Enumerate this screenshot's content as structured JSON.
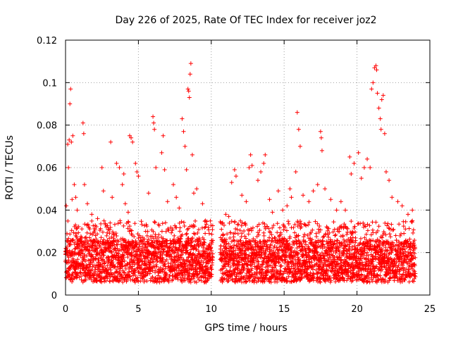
{
  "chart_data": {
    "type": "scatter",
    "title": "Day 226 of 2025, Rate Of TEC Index for receiver joz2",
    "xlabel": "GPS time / hours",
    "ylabel": "ROTI / TECUs",
    "xlim": [
      0,
      25
    ],
    "ylim": [
      0,
      0.12
    ],
    "xticks": [
      0,
      5,
      10,
      15,
      20,
      25
    ],
    "xtick_labels": [
      "0",
      "5",
      "10",
      "15",
      "20",
      "25"
    ],
    "yticks": [
      0,
      0.02,
      0.04,
      0.06,
      0.08,
      0.1,
      0.12
    ],
    "ytick_labels": [
      "0",
      "0.02",
      "0.04",
      "0.06",
      "0.08",
      "0.1",
      "0.12"
    ],
    "grid": true,
    "marker": "+",
    "color": "#ff0000",
    "data_gap_hours": [
      10.1,
      10.6
    ],
    "series": [
      {
        "name": "ROTI",
        "points": [
          [
            0.05,
            0.042
          ],
          [
            0.15,
            0.071
          ],
          [
            0.2,
            0.06
          ],
          [
            0.25,
            0.073
          ],
          [
            0.3,
            0.09
          ],
          [
            0.35,
            0.097
          ],
          [
            0.4,
            0.072
          ],
          [
            0.45,
            0.045
          ],
          [
            0.5,
            0.075
          ],
          [
            0.6,
            0.052
          ],
          [
            0.7,
            0.046
          ],
          [
            0.8,
            0.04
          ],
          [
            1.2,
            0.081
          ],
          [
            1.25,
            0.076
          ],
          [
            1.3,
            0.052
          ],
          [
            1.5,
            0.043
          ],
          [
            1.8,
            0.038
          ],
          [
            2.2,
            0.036
          ],
          [
            2.5,
            0.06
          ],
          [
            2.6,
            0.049
          ],
          [
            3.1,
            0.072
          ],
          [
            3.2,
            0.046
          ],
          [
            3.5,
            0.062
          ],
          [
            3.7,
            0.06
          ],
          [
            3.9,
            0.052
          ],
          [
            4.0,
            0.057
          ],
          [
            4.1,
            0.043
          ],
          [
            4.3,
            0.039
          ],
          [
            4.4,
            0.075
          ],
          [
            4.5,
            0.074
          ],
          [
            4.6,
            0.072
          ],
          [
            4.8,
            0.062
          ],
          [
            4.9,
            0.058
          ],
          [
            5.0,
            0.056
          ],
          [
            5.5,
            0.03
          ],
          [
            5.7,
            0.048
          ],
          [
            6.0,
            0.084
          ],
          [
            6.05,
            0.081
          ],
          [
            6.1,
            0.078
          ],
          [
            6.2,
            0.06
          ],
          [
            6.6,
            0.067
          ],
          [
            6.7,
            0.075
          ],
          [
            6.8,
            0.059
          ],
          [
            7.0,
            0.044
          ],
          [
            7.4,
            0.052
          ],
          [
            7.6,
            0.046
          ],
          [
            7.8,
            0.041
          ],
          [
            8.0,
            0.083
          ],
          [
            8.1,
            0.077
          ],
          [
            8.2,
            0.07
          ],
          [
            8.3,
            0.059
          ],
          [
            8.4,
            0.097
          ],
          [
            8.45,
            0.096
          ],
          [
            8.5,
            0.093
          ],
          [
            8.55,
            0.104
          ],
          [
            8.6,
            0.109
          ],
          [
            8.7,
            0.066
          ],
          [
            8.8,
            0.048
          ],
          [
            9.0,
            0.05
          ],
          [
            9.4,
            0.043
          ],
          [
            9.6,
            0.035
          ],
          [
            9.9,
            0.024
          ],
          [
            10.8,
            0.028
          ],
          [
            11.0,
            0.038
          ],
          [
            11.2,
            0.037
          ],
          [
            11.4,
            0.053
          ],
          [
            11.6,
            0.059
          ],
          [
            11.7,
            0.056
          ],
          [
            12.1,
            0.047
          ],
          [
            12.4,
            0.044
          ],
          [
            12.6,
            0.06
          ],
          [
            12.7,
            0.066
          ],
          [
            12.8,
            0.061
          ],
          [
            13.2,
            0.054
          ],
          [
            13.4,
            0.058
          ],
          [
            13.6,
            0.062
          ],
          [
            13.7,
            0.066
          ],
          [
            14.0,
            0.045
          ],
          [
            14.2,
            0.039
          ],
          [
            14.6,
            0.049
          ],
          [
            14.9,
            0.04
          ],
          [
            15.2,
            0.042
          ],
          [
            15.4,
            0.05
          ],
          [
            15.5,
            0.046
          ],
          [
            15.8,
            0.058
          ],
          [
            15.9,
            0.086
          ],
          [
            16.0,
            0.078
          ],
          [
            16.1,
            0.07
          ],
          [
            16.3,
            0.047
          ],
          [
            16.7,
            0.044
          ],
          [
            17.0,
            0.049
          ],
          [
            17.3,
            0.052
          ],
          [
            17.5,
            0.077
          ],
          [
            17.55,
            0.074
          ],
          [
            17.6,
            0.068
          ],
          [
            17.8,
            0.05
          ],
          [
            18.2,
            0.045
          ],
          [
            18.6,
            0.04
          ],
          [
            18.9,
            0.044
          ],
          [
            19.2,
            0.04
          ],
          [
            19.5,
            0.065
          ],
          [
            19.6,
            0.057
          ],
          [
            19.8,
            0.062
          ],
          [
            20.1,
            0.067
          ],
          [
            20.3,
            0.055
          ],
          [
            20.5,
            0.06
          ],
          [
            20.7,
            0.064
          ],
          [
            20.9,
            0.06
          ],
          [
            21.0,
            0.097
          ],
          [
            21.1,
            0.1
          ],
          [
            21.2,
            0.107
          ],
          [
            21.3,
            0.108
          ],
          [
            21.35,
            0.106
          ],
          [
            21.4,
            0.095
          ],
          [
            21.5,
            0.088
          ],
          [
            21.6,
            0.083
          ],
          [
            21.65,
            0.078
          ],
          [
            21.7,
            0.092
          ],
          [
            21.8,
            0.094
          ],
          [
            21.9,
            0.076
          ],
          [
            22.0,
            0.058
          ],
          [
            22.2,
            0.054
          ],
          [
            22.4,
            0.046
          ],
          [
            22.8,
            0.044
          ],
          [
            23.1,
            0.042
          ],
          [
            23.5,
            0.038
          ],
          [
            23.8,
            0.04
          ]
        ],
        "baseline_band": [
          0.006,
          0.026
        ],
        "typical_peak_level": 0.035
      }
    ]
  }
}
